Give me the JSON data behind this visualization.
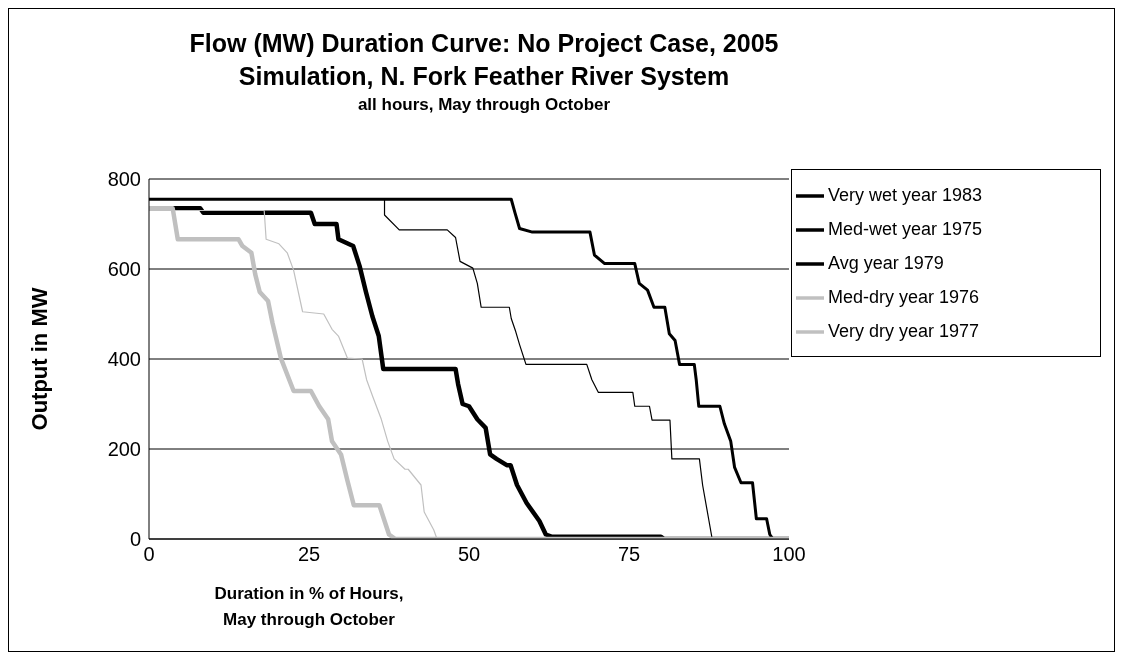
{
  "chart_data": {
    "type": "line",
    "title": "Flow (MW) Duration Curve: No Project Case, 2005\nSimulation, N. Fork Feather River System",
    "subtitle": "all hours, May through October",
    "xlabel": "Duration in % of Hours,\nMay through October",
    "ylabel": "Output in MW",
    "xlim": [
      0,
      100
    ],
    "xticks": [
      0,
      25,
      50,
      75,
      100
    ],
    "ylim": [
      0,
      800
    ],
    "yticks": [
      0,
      200,
      400,
      600,
      800
    ],
    "grid": "y",
    "legend": "right",
    "marker": "none",
    "line_style": "solid",
    "series": [
      {
        "name": "Very wet year  1983",
        "color": "#000000",
        "x": [
          0,
          56.6,
          57.2,
          57.9,
          59.9,
          68.9,
          69.6,
          71.2,
          75.9,
          76.6,
          77.9,
          78.9,
          80.6,
          81.3,
          82.2,
          82.9,
          85.2,
          85.5,
          85.9,
          89.2,
          89.9,
          90.9,
          91.5,
          92.5,
          94.3,
          94.9,
          96.5,
          97,
          97.5,
          100
        ],
        "values": [
          755,
          755,
          724,
          690,
          682,
          682,
          631,
          612,
          612,
          568,
          553,
          515,
          515,
          456,
          441,
          388,
          388,
          354,
          295,
          295,
          256,
          217,
          159,
          125,
          125,
          45,
          45,
          10,
          0,
          0
        ]
      },
      {
        "name": "Med-wet year  1975",
        "color": "#000000",
        "x": [
          0,
          36.8,
          36.8,
          39.1,
          46.6,
          47.9,
          48.6,
          50.6,
          51.3,
          51.9,
          56.3,
          56.6,
          57.3,
          57.9,
          58.9,
          68.4,
          69.2,
          70.2,
          75.6,
          75.9,
          78.2,
          78.6,
          81.4,
          81.7,
          86,
          86.5,
          87.5,
          88,
          100
        ],
        "values": [
          755,
          755,
          720,
          687,
          687,
          670,
          617,
          602,
          568,
          515,
          515,
          490,
          461,
          432,
          388,
          388,
          354,
          326,
          326,
          295,
          295,
          264,
          264,
          178,
          178,
          120,
          40,
          0,
          0
        ]
      },
      {
        "name": "Avg year  1979",
        "color": "#000000",
        "x": [
          0,
          8,
          8.5,
          25.3,
          25.9,
          29.3,
          29.6,
          31.9,
          32.9,
          33.9,
          34.9,
          35.9,
          36.6,
          47.9,
          48.3,
          49,
          50,
          51.3,
          52.6,
          53.3,
          54.3,
          55.9,
          56.5,
          57.5,
          59,
          61,
          62,
          63,
          80,
          80.5,
          100
        ],
        "values": [
          735,
          735,
          725,
          725,
          700,
          700,
          666,
          651,
          607,
          549,
          495,
          451,
          378,
          378,
          344,
          300,
          295,
          266,
          247,
          188,
          178,
          164,
          164,
          120,
          80,
          40,
          10,
          5,
          5,
          0,
          0
        ]
      },
      {
        "name": "Med-dry year  1976",
        "color": "#c0c0c0",
        "x": [
          0,
          18,
          18.3,
          20.3,
          21.6,
          22.6,
          24,
          27.3,
          28.6,
          29.6,
          31,
          33.3,
          34,
          35,
          36.3,
          37.3,
          38.3,
          40,
          40.5,
          42.5,
          43,
          44.5,
          45,
          100
        ],
        "values": [
          730,
          730,
          666,
          656,
          636,
          597,
          505,
          500,
          466,
          451,
          402,
          400,
          354,
          315,
          266,
          217,
          178,
          155,
          155,
          120,
          60,
          20,
          0,
          0
        ]
      },
      {
        "name": "Very dry year  1977",
        "color": "#c0c0c0",
        "x": [
          0,
          3.7,
          4.5,
          14,
          14.6,
          16,
          16.6,
          17.3,
          18.6,
          19.3,
          20.6,
          22.6,
          25.3,
          26.6,
          28,
          28.6,
          30,
          31,
          32,
          36,
          37.5,
          38.5,
          100
        ],
        "values": [
          735,
          735,
          666,
          666,
          651,
          636,
          588,
          549,
          529,
          480,
          402,
          329,
          329,
          295,
          266,
          217,
          188,
          130,
          75,
          75,
          10,
          0,
          0
        ]
      }
    ]
  }
}
